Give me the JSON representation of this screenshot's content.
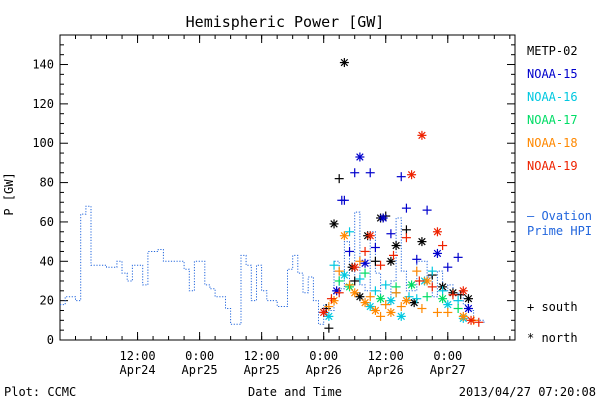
{
  "chart_data": {
    "type": "scatter",
    "title": "Hemispheric Power [GW]",
    "ylabel": "P [GW]",
    "xlabel": "Date and Time",
    "ylim": [
      0,
      155
    ],
    "yticks": [
      0,
      20,
      40,
      60,
      80,
      100,
      120,
      140
    ],
    "xlim": [
      "2013-04-23T21:00",
      "2013-04-27T13:00"
    ],
    "xticks": [
      {
        "t": "2013-04-24T12:00",
        "line1": "12:00",
        "line2": "Apr24"
      },
      {
        "t": "2013-04-25T00:00",
        "line1": "0:00",
        "line2": "Apr25"
      },
      {
        "t": "2013-04-25T12:00",
        "line1": "12:00",
        "line2": "Apr25"
      },
      {
        "t": "2013-04-26T00:00",
        "line1": "0:00",
        "line2": "Apr26"
      },
      {
        "t": "2013-04-26T12:00",
        "line1": "12:00",
        "line2": "Apr26"
      },
      {
        "t": "2013-04-27T00:00",
        "line1": "0:00",
        "line2": "Apr27"
      }
    ],
    "grid": false,
    "legend_position": "right",
    "series": [
      {
        "name": "METP-02",
        "color": "#000000",
        "points": [
          [
            "2013-04-26T00:30",
            16,
            "s"
          ],
          [
            "2013-04-26T01:00",
            6,
            "s"
          ],
          [
            "2013-04-26T02:00",
            59,
            "n"
          ],
          [
            "2013-04-26T03:00",
            82,
            "s"
          ],
          [
            "2013-04-26T04:00",
            141,
            "n"
          ],
          [
            "2013-04-26T05:30",
            37,
            "n"
          ],
          [
            "2013-04-26T06:00",
            30,
            "s"
          ],
          [
            "2013-04-26T07:00",
            22,
            "n"
          ],
          [
            "2013-04-26T08:30",
            53,
            "n"
          ],
          [
            "2013-04-26T10:00",
            40,
            "s"
          ],
          [
            "2013-04-26T11:00",
            62,
            "n"
          ],
          [
            "2013-04-26T12:00",
            63,
            "s"
          ],
          [
            "2013-04-26T13:00",
            40,
            "n"
          ],
          [
            "2013-04-26T14:00",
            48,
            "n"
          ],
          [
            "2013-04-26T16:00",
            56,
            "s"
          ],
          [
            "2013-04-26T17:30",
            19,
            "n"
          ],
          [
            "2013-04-26T19:00",
            50,
            "n"
          ],
          [
            "2013-04-26T21:00",
            33,
            "s"
          ],
          [
            "2013-04-26T23:00",
            27,
            "n"
          ],
          [
            "2013-04-27T01:00",
            24,
            "n"
          ],
          [
            "2013-04-27T02:30",
            23,
            "s"
          ],
          [
            "2013-04-27T04:00",
            21,
            "n"
          ]
        ]
      },
      {
        "name": "NOAA-15",
        "color": "#0000cc",
        "points": [
          [
            "2013-04-26T00:00",
            14,
            "s"
          ],
          [
            "2013-04-26T02:30",
            25,
            "n"
          ],
          [
            "2013-04-26T03:30",
            71,
            "s"
          ],
          [
            "2013-04-26T04:00",
            71,
            "s"
          ],
          [
            "2013-04-26T05:00",
            45,
            "s"
          ],
          [
            "2013-04-26T06:00",
            85,
            "s"
          ],
          [
            "2013-04-26T07:00",
            93,
            "n"
          ],
          [
            "2013-04-26T08:00",
            39,
            "n"
          ],
          [
            "2013-04-26T09:00",
            85,
            "s"
          ],
          [
            "2013-04-26T10:00",
            47,
            "s"
          ],
          [
            "2013-04-26T11:30",
            62,
            "n"
          ],
          [
            "2013-04-26T13:00",
            54,
            "s"
          ],
          [
            "2013-04-26T15:00",
            83,
            "s"
          ],
          [
            "2013-04-26T16:00",
            67,
            "s"
          ],
          [
            "2013-04-26T18:00",
            41,
            "s"
          ],
          [
            "2013-04-26T20:00",
            66,
            "s"
          ],
          [
            "2013-04-26T22:00",
            44,
            "n"
          ],
          [
            "2013-04-27T00:00",
            37,
            "s"
          ],
          [
            "2013-04-27T02:00",
            42,
            "s"
          ],
          [
            "2013-04-27T04:00",
            16,
            "n"
          ]
        ]
      },
      {
        "name": "NOAA-16",
        "color": "#00c8e0",
        "points": [
          [
            "2013-04-26T01:00",
            12,
            "n"
          ],
          [
            "2013-04-26T02:00",
            38,
            "s"
          ],
          [
            "2013-04-26T04:00",
            33,
            "n"
          ],
          [
            "2013-04-26T05:00",
            55,
            "s"
          ],
          [
            "2013-04-26T07:00",
            31,
            "s"
          ],
          [
            "2013-04-26T09:00",
            17,
            "n"
          ],
          [
            "2013-04-26T10:00",
            25,
            "s"
          ],
          [
            "2013-04-26T12:00",
            28,
            "s"
          ],
          [
            "2013-04-26T13:00",
            20,
            "n"
          ],
          [
            "2013-04-26T14:00",
            24,
            "s"
          ],
          [
            "2013-04-26T15:00",
            12,
            "n"
          ],
          [
            "2013-04-26T16:30",
            22,
            "s"
          ],
          [
            "2013-04-26T18:00",
            21,
            "s"
          ],
          [
            "2013-04-26T19:30",
            30,
            "n"
          ],
          [
            "2013-04-26T21:00",
            35,
            "s"
          ],
          [
            "2013-04-26T23:00",
            25,
            "s"
          ],
          [
            "2013-04-27T00:00",
            18,
            "n"
          ],
          [
            "2013-04-27T02:00",
            20,
            "s"
          ],
          [
            "2013-04-27T03:00",
            11,
            "n"
          ]
        ]
      },
      {
        "name": "NOAA-17",
        "color": "#00dd66",
        "points": [
          [
            "2013-04-26T03:00",
            30,
            "s"
          ],
          [
            "2013-04-26T05:00",
            27,
            "n"
          ],
          [
            "2013-04-26T08:00",
            34,
            "s"
          ],
          [
            "2013-04-26T11:00",
            21,
            "n"
          ],
          [
            "2013-04-26T14:00",
            27,
            "s"
          ],
          [
            "2013-04-26T17:00",
            28,
            "n"
          ],
          [
            "2013-04-26T20:00",
            22,
            "s"
          ],
          [
            "2013-04-26T23:00",
            21,
            "n"
          ],
          [
            "2013-04-27T02:00",
            16,
            "s"
          ]
        ]
      },
      {
        "name": "NOAA-18",
        "color": "#ff8800",
        "points": [
          [
            "2013-04-26T01:00",
            17,
            "s"
          ],
          [
            "2013-04-26T02:00",
            20,
            "n"
          ],
          [
            "2013-04-26T03:00",
            35,
            "s"
          ],
          [
            "2013-04-26T04:00",
            53,
            "n"
          ],
          [
            "2013-04-26T05:00",
            28,
            "s"
          ],
          [
            "2013-04-26T06:00",
            24,
            "n"
          ],
          [
            "2013-04-26T07:00",
            40,
            "s"
          ],
          [
            "2013-04-26T08:00",
            19,
            "n"
          ],
          [
            "2013-04-26T09:00",
            22,
            "s"
          ],
          [
            "2013-04-26T10:00",
            15,
            "n"
          ],
          [
            "2013-04-26T11:00",
            12,
            "s"
          ],
          [
            "2013-04-26T12:00",
            18,
            "s"
          ],
          [
            "2013-04-26T13:00",
            14,
            "n"
          ],
          [
            "2013-04-26T14:00",
            24,
            "s"
          ],
          [
            "2013-04-26T15:00",
            17,
            "s"
          ],
          [
            "2013-04-26T16:00",
            20,
            "n"
          ],
          [
            "2013-04-26T18:00",
            35,
            "s"
          ],
          [
            "2013-04-26T19:00",
            16,
            "s"
          ],
          [
            "2013-04-26T20:00",
            30,
            "n"
          ],
          [
            "2013-04-26T22:00",
            14,
            "s"
          ],
          [
            "2013-04-27T00:00",
            14,
            "s"
          ],
          [
            "2013-04-27T03:00",
            12,
            "n"
          ],
          [
            "2013-04-27T05:00",
            10,
            "s"
          ]
        ]
      },
      {
        "name": "NOAA-19",
        "color": "#ee2200",
        "points": [
          [
            "2013-04-26T00:00",
            14,
            "n"
          ],
          [
            "2013-04-26T01:30",
            21,
            "s"
          ],
          [
            "2013-04-26T03:00",
            24,
            "s"
          ],
          [
            "2013-04-26T06:00",
            37,
            "n"
          ],
          [
            "2013-04-26T08:00",
            45,
            "s"
          ],
          [
            "2013-04-26T09:00",
            53,
            "n"
          ],
          [
            "2013-04-26T11:00",
            38,
            "s"
          ],
          [
            "2013-04-26T13:30",
            43,
            "s"
          ],
          [
            "2013-04-26T16:00",
            52,
            "s"
          ],
          [
            "2013-04-26T17:00",
            84,
            "n"
          ],
          [
            "2013-04-26T18:30",
            30,
            "s"
          ],
          [
            "2013-04-26T19:00",
            104,
            "n"
          ],
          [
            "2013-04-26T21:00",
            27,
            "s"
          ],
          [
            "2013-04-26T22:00",
            55,
            "n"
          ],
          [
            "2013-04-26T23:00",
            48,
            "s"
          ],
          [
            "2013-04-27T01:00",
            23,
            "s"
          ],
          [
            "2013-04-27T03:00",
            25,
            "n"
          ],
          [
            "2013-04-27T04:30",
            10,
            "n"
          ],
          [
            "2013-04-27T06:00",
            9,
            "s"
          ]
        ]
      }
    ],
    "ovation": {
      "name_line1": "– Ovation",
      "name_line2": "Prime HPI",
      "color": "#2266dd",
      "steps": [
        [
          "2013-04-23T21:00",
          18
        ],
        [
          "2013-04-23T22:00",
          22
        ],
        [
          "2013-04-24T00:00",
          20
        ],
        [
          "2013-04-24T01:00",
          64
        ],
        [
          "2013-04-24T02:00",
          68
        ],
        [
          "2013-04-24T03:00",
          38
        ],
        [
          "2013-04-24T06:00",
          37
        ],
        [
          "2013-04-24T08:00",
          40
        ],
        [
          "2013-04-24T09:00",
          34
        ],
        [
          "2013-04-24T10:00",
          30
        ],
        [
          "2013-04-24T11:00",
          38
        ],
        [
          "2013-04-24T13:00",
          28
        ],
        [
          "2013-04-24T14:00",
          45
        ],
        [
          "2013-04-24T16:00",
          46
        ],
        [
          "2013-04-24T17:00",
          40
        ],
        [
          "2013-04-24T21:00",
          36
        ],
        [
          "2013-04-24T22:00",
          25
        ],
        [
          "2013-04-24T23:00",
          40
        ],
        [
          "2013-04-25T01:00",
          28
        ],
        [
          "2013-04-25T02:00",
          26
        ],
        [
          "2013-04-25T03:00",
          22
        ],
        [
          "2013-04-25T05:00",
          16
        ],
        [
          "2013-04-25T06:00",
          8
        ],
        [
          "2013-04-25T08:00",
          43
        ],
        [
          "2013-04-25T09:00",
          38
        ],
        [
          "2013-04-25T10:00",
          20
        ],
        [
          "2013-04-25T11:00",
          38
        ],
        [
          "2013-04-25T12:00",
          25
        ],
        [
          "2013-04-25T13:00",
          20
        ],
        [
          "2013-04-25T15:00",
          17
        ],
        [
          "2013-04-25T17:00",
          36
        ],
        [
          "2013-04-25T18:00",
          43
        ],
        [
          "2013-04-25T19:00",
          34
        ],
        [
          "2013-04-25T20:00",
          24
        ],
        [
          "2013-04-25T21:00",
          32
        ],
        [
          "2013-04-25T22:00",
          20
        ],
        [
          "2013-04-25T23:00",
          8
        ],
        [
          "2013-04-26T00:00",
          18
        ],
        [
          "2013-04-26T01:00",
          15
        ],
        [
          "2013-04-26T02:00",
          40
        ],
        [
          "2013-04-26T03:00",
          26
        ],
        [
          "2013-04-26T04:00",
          50
        ],
        [
          "2013-04-26T05:00",
          30
        ],
        [
          "2013-04-26T06:00",
          65
        ],
        [
          "2013-04-26T07:00",
          28
        ],
        [
          "2013-04-26T08:00",
          25
        ],
        [
          "2013-04-26T09:00",
          55
        ],
        [
          "2013-04-26T10:00",
          34
        ],
        [
          "2013-04-26T11:00",
          18
        ],
        [
          "2013-04-26T13:00",
          30
        ],
        [
          "2013-04-26T14:00",
          62
        ],
        [
          "2013-04-26T15:00",
          35
        ],
        [
          "2013-04-26T16:00",
          25
        ],
        [
          "2013-04-26T18:00",
          40
        ],
        [
          "2013-04-26T20:00",
          32
        ],
        [
          "2013-04-26T21:00",
          22
        ],
        [
          "2013-04-26T22:00",
          35
        ],
        [
          "2013-04-26T23:00",
          25
        ],
        [
          "2013-04-27T00:00",
          28
        ],
        [
          "2013-04-27T01:00",
          20
        ],
        [
          "2013-04-27T02:00",
          24
        ],
        [
          "2013-04-27T03:00",
          18
        ],
        [
          "2013-04-27T04:00",
          15
        ],
        [
          "2013-04-27T05:00",
          10
        ],
        [
          "2013-04-27T07:00",
          8
        ]
      ]
    },
    "marker_legend": {
      "south": "+ south",
      "north": "* north"
    }
  },
  "footer": {
    "left": "Plot: CCMC",
    "timestamp": "2013/04/27 07:20:08"
  }
}
